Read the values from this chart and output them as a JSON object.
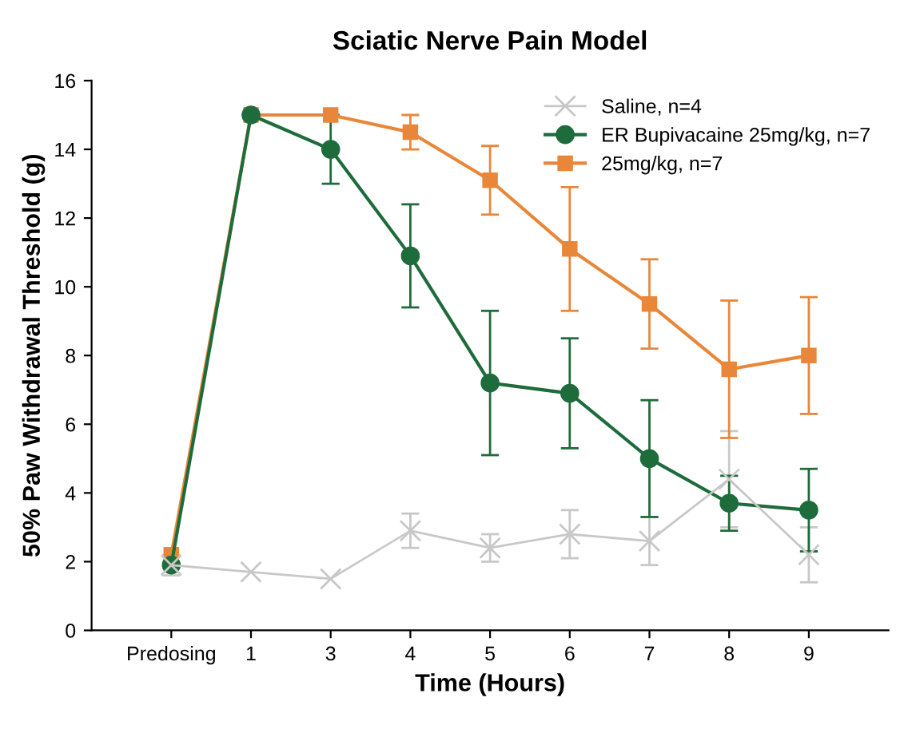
{
  "chart_data": {
    "type": "line",
    "title": "Sciatic Nerve Pain Model",
    "xlabel": "Time (Hours)",
    "ylabel": "50% Paw Withdrawal Threshold (g)",
    "categories": [
      "Predosing",
      "1",
      "3",
      "4",
      "5",
      "6",
      "7",
      "8",
      "9"
    ],
    "ylim": [
      0,
      16
    ],
    "yticks": [
      0,
      2,
      4,
      6,
      8,
      10,
      12,
      14,
      16
    ],
    "grid": false,
    "legend": "top right",
    "series": [
      {
        "name": "Saline, n=4",
        "color": "#c8c8c8",
        "marker": "cross",
        "values": [
          1.9,
          1.7,
          1.5,
          2.9,
          2.4,
          2.8,
          2.6,
          4.4,
          2.2
        ],
        "errors": [
          0.3,
          null,
          null,
          0.5,
          0.4,
          0.7,
          0.7,
          1.4,
          0.8
        ]
      },
      {
        "name": "ER Bupivacaine 25mg/kg, n=7",
        "color": "#1e6b3c",
        "marker": "circle",
        "values": [
          1.9,
          15.0,
          14.0,
          10.9,
          7.2,
          6.9,
          5.0,
          3.7,
          3.5
        ],
        "errors": [
          null,
          null,
          1.0,
          1.5,
          2.1,
          1.6,
          1.7,
          0.8,
          1.2
        ]
      },
      {
        "name": "25mg/kg, n=7",
        "color": "#e8873a",
        "marker": "square",
        "values": [
          2.2,
          15.0,
          15.0,
          14.5,
          13.1,
          11.1,
          9.5,
          7.6,
          8.0
        ],
        "errors": [
          null,
          null,
          null,
          0.5,
          1.0,
          1.8,
          1.3,
          2.0,
          1.7
        ]
      }
    ]
  }
}
